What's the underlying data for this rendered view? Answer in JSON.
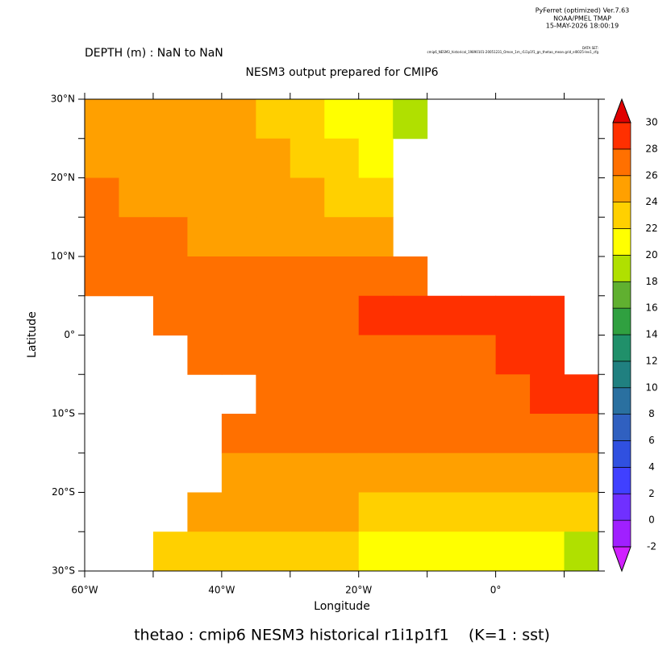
{
  "chart_data": {
    "type": "heatmap",
    "header": [
      "PyFerret (optimized) Ver.7.63",
      "NOAA/PMEL TMAP",
      "15-MAY-2026 18:00:19"
    ],
    "dataset_label": "DATA SET:",
    "dataset": "cmip6_NESM3_historical_19890101-20051231_Omon_1m_r1i1p1f1_gn_thetao_mean.grid_el0025-lev1_cfg",
    "subtitle": "DEPTH (m) : NaN to NaN",
    "title": "NESM3 output prepared for CMIP6",
    "xlabel": "Longitude",
    "ylabel": "Latitude",
    "footer": "thetao : cmip6 NESM3 historical r1i1p1f1    (K=1 : sst)",
    "xbins": [
      -60,
      -55,
      -50,
      -45,
      -40,
      -35,
      -30,
      -25,
      -20,
      -15,
      -10,
      -5,
      0,
      5,
      10,
      15
    ],
    "ybins": [
      30,
      25,
      20,
      15,
      10,
      5,
      0,
      -5,
      -10,
      -15,
      -20,
      -25,
      -30
    ],
    "z": [
      [
        24,
        24,
        24,
        24,
        24,
        23,
        22,
        21,
        20,
        19,
        null,
        null,
        null,
        null,
        null
      ],
      [
        25,
        25,
        24,
        24,
        24,
        24,
        23,
        22,
        21,
        null,
        null,
        null,
        null,
        null,
        null
      ],
      [
        26,
        25,
        25,
        25,
        24,
        24,
        24,
        23,
        22,
        null,
        null,
        null,
        null,
        null,
        null
      ],
      [
        26,
        26,
        26,
        25,
        25,
        25,
        25,
        25,
        24,
        null,
        null,
        null,
        null,
        null,
        null
      ],
      [
        27,
        27,
        27,
        26,
        26,
        26,
        26,
        26,
        27,
        27,
        null,
        null,
        null,
        null,
        null
      ],
      [
        null,
        null,
        27,
        27,
        27,
        27,
        27,
        27,
        28,
        28,
        28,
        28,
        28,
        28,
        null
      ],
      [
        null,
        null,
        null,
        27,
        27,
        26,
        26,
        27,
        27,
        27,
        27,
        27,
        28,
        28,
        null
      ],
      [
        null,
        null,
        null,
        null,
        null,
        26,
        26,
        26,
        26,
        26,
        27,
        27,
        27,
        28,
        28
      ],
      [
        null,
        null,
        null,
        null,
        26,
        26,
        26,
        26,
        26,
        26,
        26,
        26,
        27,
        27,
        27
      ],
      [
        null,
        null,
        null,
        null,
        25,
        25,
        25,
        25,
        25,
        25,
        25,
        25,
        25,
        25,
        24
      ],
      [
        null,
        null,
        null,
        24,
        24,
        24,
        24,
        24,
        23,
        23,
        23,
        23,
        22,
        22,
        22
      ],
      [
        null,
        null,
        22,
        22,
        22,
        22,
        22,
        22,
        21,
        21,
        21,
        20,
        20,
        20,
        19
      ]
    ],
    "xlim": [
      -60,
      15
    ],
    "ylim": [
      -30,
      30
    ],
    "xticks": [
      {
        "value": -60,
        "label": "60°W"
      },
      {
        "value": -40,
        "label": "40°W"
      },
      {
        "value": -20,
        "label": "20°W"
      },
      {
        "value": 0,
        "label": "0°"
      }
    ],
    "xminor": [
      -50,
      -30,
      -10,
      10
    ],
    "yticks": [
      {
        "value": 30,
        "label": "30°N"
      },
      {
        "value": 20,
        "label": "20°N"
      },
      {
        "value": 10,
        "label": "10°N"
      },
      {
        "value": 0,
        "label": "0°"
      },
      {
        "value": -10,
        "label": "10°S"
      },
      {
        "value": -20,
        "label": "20°S"
      },
      {
        "value": -30,
        "label": "30°S"
      }
    ],
    "yminor": [
      25,
      15,
      5,
      -5,
      -15,
      -25
    ],
    "levels": [
      -2,
      0,
      2,
      4,
      6,
      8,
      10,
      12,
      14,
      16,
      18,
      20,
      22,
      24,
      26,
      28,
      30
    ],
    "colors": [
      "#d020ff",
      "#a020ff",
      "#7030ff",
      "#4040ff",
      "#3050e0",
      "#3060c0",
      "#2a70a0",
      "#208080",
      "#20906a",
      "#30a040",
      "#60b030",
      "#b0e000",
      "#ffff00",
      "#ffd000",
      "#ffa000",
      "#ff7000",
      "#ff3000",
      "#e00000"
    ]
  }
}
